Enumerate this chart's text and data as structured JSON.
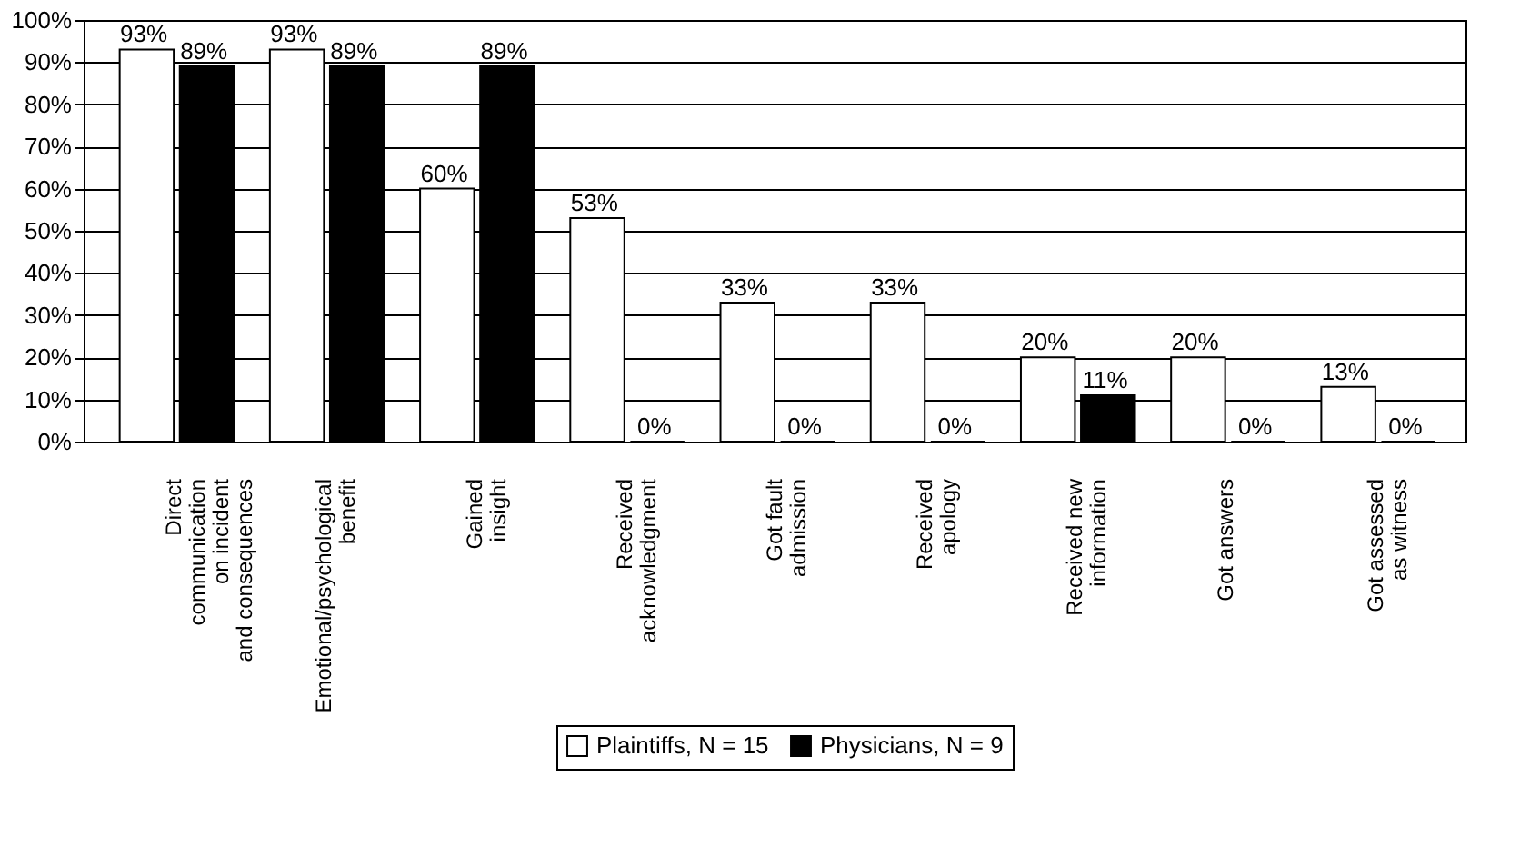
{
  "chart_data": {
    "type": "bar",
    "categories": [
      "Direct\ncommunication\non incident\nand consequences",
      "Emotional/psychological\nbenefit",
      "Gained\ninsight",
      "Received\nacknowledgment",
      "Got fault\nadmission",
      "Received\napology",
      "Received new\ninformation",
      "Got answers",
      "Got assessed\nas witness"
    ],
    "series": [
      {
        "name": "Plaintiffs, N = 15",
        "color": "#ffffff",
        "values": [
          93,
          93,
          60,
          53,
          33,
          33,
          20,
          20,
          13
        ],
        "value_labels": [
          "93%",
          "93%",
          "60%",
          "53%",
          "33%",
          "33%",
          "20%",
          "20%",
          "13%"
        ]
      },
      {
        "name": "Physicians, N = 9",
        "color": "#000000",
        "values": [
          89,
          89,
          89,
          0,
          0,
          0,
          11,
          0,
          0
        ],
        "value_labels": [
          "89%",
          "89%",
          "89%",
          "0%",
          "0%",
          "0%",
          "11%",
          "0%",
          "0%"
        ]
      }
    ],
    "ylim": [
      0,
      100
    ],
    "yticks": [
      {
        "value": 0,
        "label": "0%"
      },
      {
        "value": 10,
        "label": "10%"
      },
      {
        "value": 20,
        "label": "20%"
      },
      {
        "value": 30,
        "label": "30%"
      },
      {
        "value": 40,
        "label": "40%"
      },
      {
        "value": 50,
        "label": "50%"
      },
      {
        "value": 60,
        "label": "60%"
      },
      {
        "value": 70,
        "label": "70%"
      },
      {
        "value": 80,
        "label": "80%"
      },
      {
        "value": 90,
        "label": "90%"
      },
      {
        "value": 100,
        "label": "100%"
      }
    ],
    "grid": "y",
    "legend": "bottom"
  }
}
